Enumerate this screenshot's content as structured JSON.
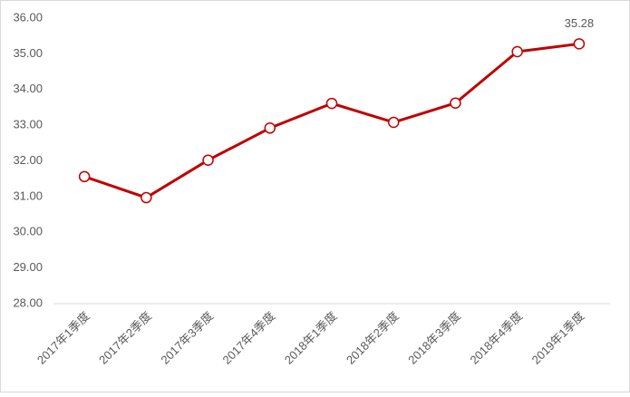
{
  "chart_data": {
    "type": "line",
    "categories": [
      "2017年1季度",
      "2017年2季度",
      "2017年3季度",
      "2017年4季度",
      "2018年1季度",
      "2018年2季度",
      "2018年3季度",
      "2018年4季度",
      "2019年1季度"
    ],
    "series": [
      {
        "color": "#c00000",
        "values": [
          31.56,
          30.97,
          32.02,
          32.92,
          33.61,
          33.08,
          33.62,
          35.06,
          35.28
        ],
        "value_labels": [
          null,
          null,
          null,
          null,
          null,
          null,
          null,
          null,
          "35.28"
        ]
      }
    ],
    "ylim": [
      28,
      36
    ],
    "yticks": [
      {
        "value": 28,
        "label": "28.00"
      },
      {
        "value": 29,
        "label": "29.00"
      },
      {
        "value": 30,
        "label": "30.00"
      },
      {
        "value": 31,
        "label": "31.00"
      },
      {
        "value": 32,
        "label": "32.00"
      },
      {
        "value": 33,
        "label": "33.00"
      },
      {
        "value": 34,
        "label": "34.00"
      },
      {
        "value": 35,
        "label": "35.00"
      },
      {
        "value": 36,
        "label": "36.00"
      }
    ],
    "grid": false
  }
}
